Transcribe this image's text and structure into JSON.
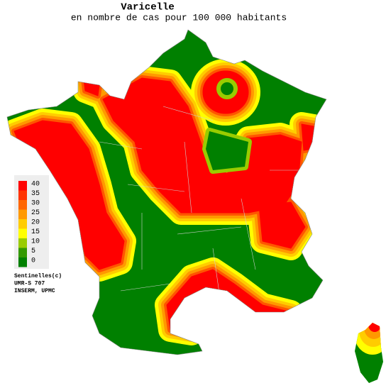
{
  "header": {
    "title": "Varicelle",
    "subtitle": "en nombre de cas pour 100 000 habitants"
  },
  "legend": {
    "items": [
      {
        "label": 40,
        "color": "#ff0000"
      },
      {
        "label": 35,
        "color": "#ff3300"
      },
      {
        "label": 30,
        "color": "#ff6600"
      },
      {
        "label": 25,
        "color": "#ff9900"
      },
      {
        "label": 20,
        "color": "#ffcc00"
      },
      {
        "label": 15,
        "color": "#ffff00"
      },
      {
        "label": 10,
        "color": "#99cc00"
      },
      {
        "label": 5,
        "color": "#339900"
      },
      {
        "label": 0,
        "color": "#008000"
      }
    ]
  },
  "credits": [
    "Sentinelles(c)",
    "UMR-S 707",
    "INSERM, UPMC"
  ]
}
